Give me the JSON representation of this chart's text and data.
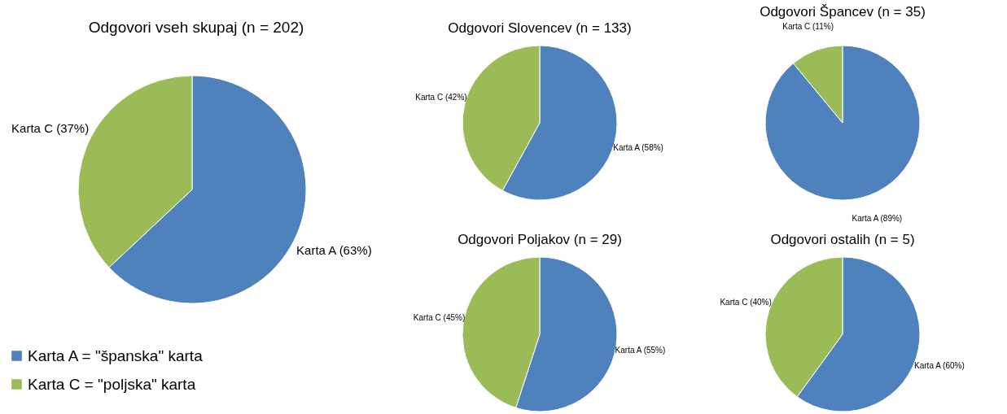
{
  "chart_data": [
    {
      "type": "pie",
      "title": "Odgovori vseh skupaj (n = 202)",
      "categories": [
        "Karta A = \"španska\" karta",
        "Karta C = \"poljska\" karta"
      ],
      "values": [
        63,
        37
      ],
      "colors": [
        "#4f81bd",
        "#9bbb59"
      ],
      "value_labels": [
        "Karta A (63%)",
        "Karta C (37%)"
      ],
      "legend": "bottom left"
    },
    {
      "type": "pie",
      "title": "Odgovori Slovencev (n = 133)",
      "categories": [
        null,
        null
      ],
      "values": [
        58,
        42
      ],
      "colors": [
        "#4f81bd",
        "#9bbb59"
      ],
      "value_labels": [
        "Karta A (58%)",
        "Karta C (42%)"
      ]
    },
    {
      "type": "pie",
      "title": "Odgovori Špancev (n = 35)",
      "categories": [
        null,
        null
      ],
      "values": [
        89,
        11
      ],
      "colors": [
        "#4f81bd",
        "#9bbb59"
      ],
      "value_labels": [
        "Karta A (89%)",
        "Karta C (11%)"
      ]
    },
    {
      "type": "pie",
      "title": "Odgovori Poljakov (n = 29)",
      "categories": [
        null,
        null
      ],
      "values": [
        55,
        45
      ],
      "colors": [
        "#4f81bd",
        "#9bbb59"
      ],
      "value_labels": [
        "Karta A (55%)",
        "Karta C (45%)"
      ]
    },
    {
      "type": "pie",
      "title": "Odgovori ostalih (n = 5)",
      "categories": [
        null,
        null
      ],
      "values": [
        60,
        40
      ],
      "colors": [
        "#4f81bd",
        "#9bbb59"
      ],
      "value_labels": [
        "Karta A (60%)",
        "Karta C (40%)"
      ]
    }
  ]
}
